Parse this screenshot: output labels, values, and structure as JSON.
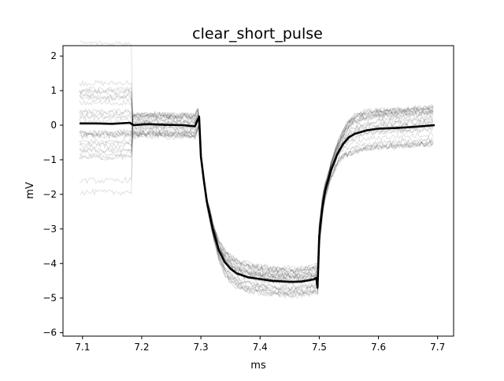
{
  "chart_data": {
    "type": "line",
    "title": "clear_short_pulse",
    "xlabel": "ms",
    "ylabel": "mV",
    "xlim": [
      7.067,
      7.727
    ],
    "ylim": [
      -6.1,
      2.3
    ],
    "grid": false,
    "legend": "none",
    "xticks": [
      {
        "value": 7.1,
        "label": "7.1"
      },
      {
        "value": 7.2,
        "label": "7.2"
      },
      {
        "value": 7.3,
        "label": "7.3"
      },
      {
        "value": 7.4,
        "label": "7.4"
      },
      {
        "value": 7.5,
        "label": "7.5"
      },
      {
        "value": 7.6,
        "label": "7.6"
      },
      {
        "value": 7.7,
        "label": "7.7"
      }
    ],
    "yticks": [
      {
        "value": 2,
        "label": "2"
      },
      {
        "value": 1,
        "label": "1"
      },
      {
        "value": 0,
        "label": "0"
      },
      {
        "value": -1,
        "label": "−1"
      },
      {
        "value": -2,
        "label": "−2"
      },
      {
        "value": -3,
        "label": "−3"
      },
      {
        "value": -4,
        "label": "−4"
      },
      {
        "value": -5,
        "label": "−5"
      },
      {
        "value": -6,
        "label": "−6"
      }
    ],
    "colors": {
      "mean": "#000000",
      "trials": "#000000"
    },
    "series": [
      {
        "role": "mean",
        "x": [
          7.095,
          7.12,
          7.15,
          7.18,
          7.186,
          7.21,
          7.24,
          7.27,
          7.29,
          7.297,
          7.3,
          7.305,
          7.31,
          7.32,
          7.33,
          7.34,
          7.35,
          7.36,
          7.38,
          7.4,
          7.42,
          7.45,
          7.47,
          7.49,
          7.495,
          7.497,
          7.5,
          7.505,
          7.51,
          7.52,
          7.53,
          7.54,
          7.55,
          7.56,
          7.58,
          7.6,
          7.63,
          7.66,
          7.695
        ],
        "y": [
          0.05,
          0.05,
          0.04,
          0.07,
          0.0,
          0.03,
          0.01,
          0.0,
          -0.03,
          0.25,
          -0.9,
          -1.6,
          -2.2,
          -3.0,
          -3.6,
          -3.95,
          -4.15,
          -4.28,
          -4.4,
          -4.45,
          -4.5,
          -4.53,
          -4.52,
          -4.46,
          -4.42,
          -4.7,
          -3.2,
          -2.4,
          -1.9,
          -1.3,
          -0.85,
          -0.55,
          -0.35,
          -0.25,
          -0.15,
          -0.1,
          -0.08,
          -0.05,
          0.0
        ]
      }
    ],
    "trials": {
      "count": 30,
      "pre_pulse_spread": [
        -1.5,
        1.85
      ],
      "pulse_spread": [
        -5.3,
        -3.9
      ],
      "post_pulse_spread": [
        -0.95,
        0.7
      ]
    }
  }
}
